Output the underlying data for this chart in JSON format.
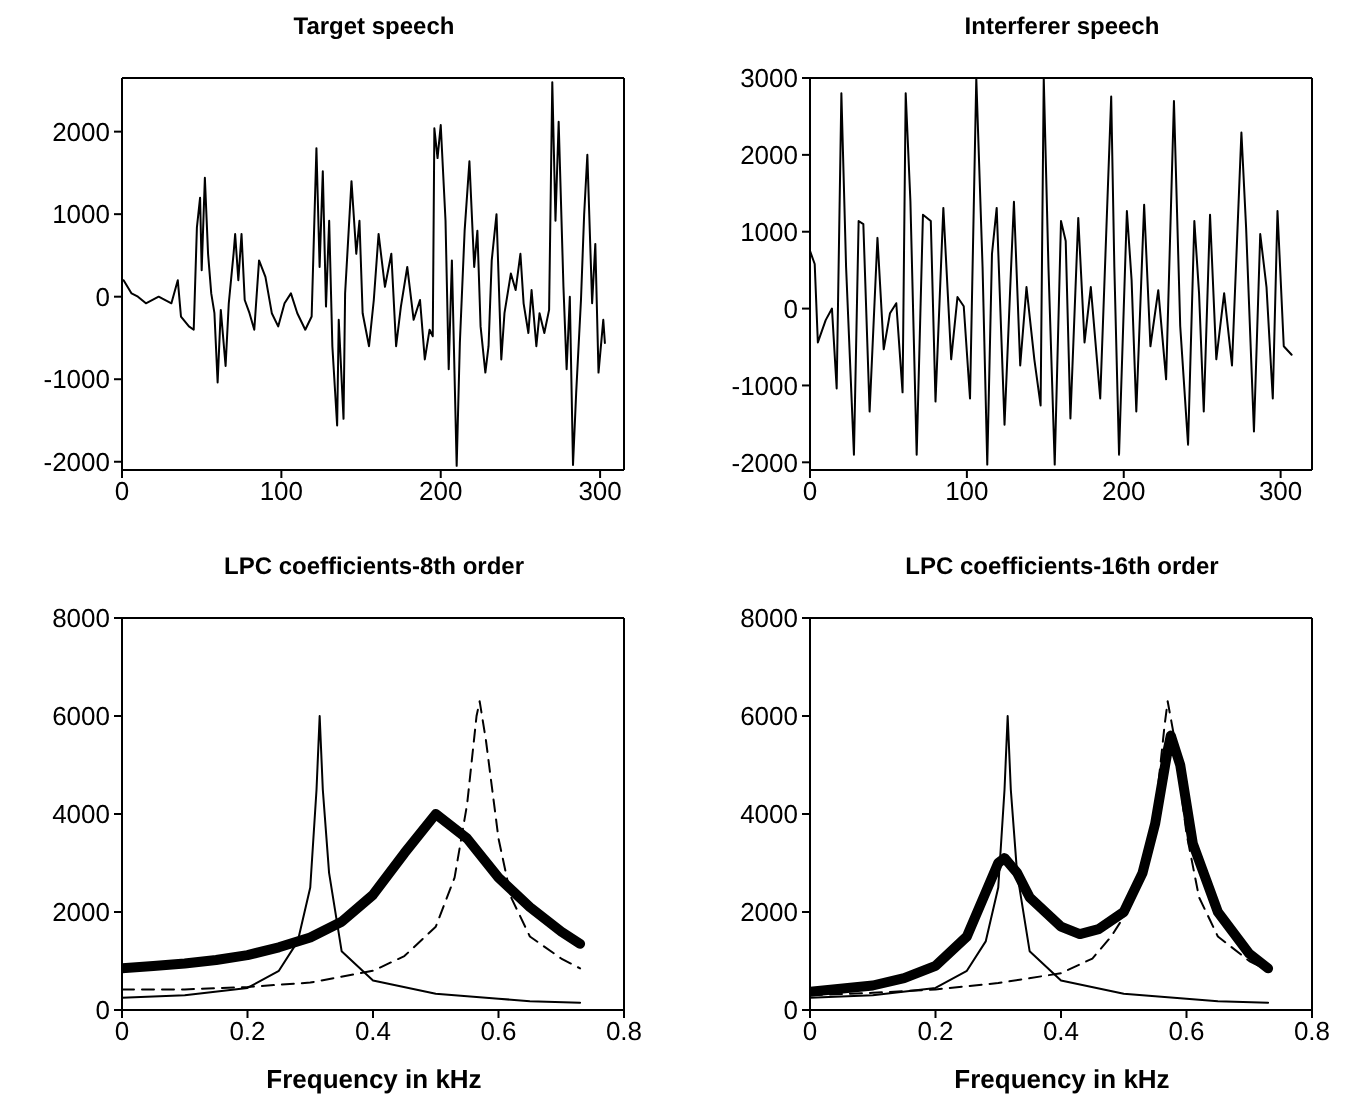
{
  "chart_data": [
    {
      "type": "line",
      "title": "Target speech",
      "xlim": [
        0,
        315
      ],
      "xticks": [
        0,
        100,
        200,
        300
      ],
      "ylim": [
        -2100,
        2650
      ],
      "yticks": [
        -2000,
        -1000,
        0,
        1000,
        2000
      ],
      "grid": false,
      "legend": false,
      "marker": "none",
      "series": [
        {
          "color": "#000000",
          "line_style": "solid",
          "x": [
            1,
            6,
            10,
            15,
            23,
            31,
            35,
            37,
            42,
            45,
            47,
            49,
            50,
            52,
            54,
            56,
            58,
            60,
            62,
            65,
            67,
            70,
            71,
            73,
            75,
            77,
            80,
            83,
            86,
            90,
            94,
            98,
            102,
            106,
            110,
            115,
            119,
            122,
            124,
            126,
            128,
            130,
            132,
            135,
            136,
            139,
            140,
            144,
            147,
            149,
            151,
            155,
            158,
            161,
            165,
            169,
            172,
            175,
            179,
            183,
            187,
            190,
            193,
            195,
            196,
            198,
            200,
            203,
            205,
            207,
            210,
            212,
            215,
            218,
            221,
            223,
            225,
            228,
            230,
            232,
            235,
            238,
            240,
            244,
            247,
            250,
            252,
            255,
            257,
            260,
            262,
            265,
            268,
            270,
            272,
            274,
            277,
            279,
            281,
            283,
            285,
            288,
            290,
            292,
            295,
            297,
            299,
            302,
            303
          ],
          "values": [
            200,
            40,
            0,
            -80,
            0,
            -80,
            200,
            -240,
            -360,
            -400,
            840,
            1200,
            320,
            1440,
            520,
            40,
            -200,
            -1040,
            -160,
            -840,
            -80,
            520,
            760,
            200,
            760,
            -40,
            -200,
            -400,
            440,
            240,
            -200,
            -360,
            -80,
            40,
            -200,
            -400,
            -240,
            1800,
            360,
            1520,
            -120,
            920,
            -600,
            -1560,
            -280,
            -1480,
            40,
            1400,
            520,
            920,
            -200,
            -600,
            -40,
            760,
            120,
            520,
            -600,
            -120,
            360,
            -280,
            -40,
            -760,
            -400,
            -480,
            2040,
            1680,
            2080,
            920,
            -880,
            440,
            -2050,
            -560,
            800,
            1640,
            360,
            800,
            -360,
            -920,
            -600,
            440,
            1000,
            -760,
            -200,
            280,
            80,
            520,
            -80,
            -440,
            80,
            -600,
            -200,
            -440,
            -160,
            2600,
            920,
            2120,
            120,
            -880,
            0,
            -2040,
            -1160,
            -40,
            1000,
            1720,
            -80,
            640,
            -920,
            -280,
            -560
          ]
        }
      ]
    },
    {
      "type": "line",
      "title": "Interferer speech",
      "xlim": [
        0,
        320
      ],
      "xticks": [
        0,
        100,
        200,
        300
      ],
      "ylim": [
        -2100,
        3000
      ],
      "yticks": [
        -2000,
        -1000,
        0,
        1000,
        2000,
        3000
      ],
      "grid": false,
      "legend": false,
      "marker": "none",
      "series": [
        {
          "color": "#000000",
          "line_style": "solid",
          "x": [
            0,
            3,
            5,
            10,
            14,
            17,
            20,
            23,
            28,
            31,
            34,
            38,
            43,
            47,
            51,
            55,
            59,
            61,
            64,
            68,
            72,
            77,
            80,
            85,
            90,
            94,
            98,
            102,
            106,
            110,
            113,
            116,
            119,
            124,
            128,
            130,
            134,
            138,
            143,
            147,
            149,
            152,
            156,
            160,
            163,
            166,
            171,
            175,
            179,
            185,
            192,
            194,
            197,
            202,
            205,
            208,
            213,
            217,
            222,
            227,
            232,
            236,
            241,
            245,
            248,
            251,
            255,
            259,
            264,
            269,
            275,
            278,
            283,
            287,
            291,
            295,
            298,
            302,
            307
          ],
          "values": [
            750,
            580,
            -440,
            -150,
            0,
            -1040,
            2800,
            540,
            -1900,
            1140,
            1100,
            -1340,
            920,
            -530,
            -60,
            70,
            -1090,
            2800,
            1400,
            -1900,
            1220,
            1140,
            -1210,
            1310,
            -660,
            150,
            30,
            -1170,
            3000,
            540,
            -2030,
            710,
            1310,
            -1510,
            450,
            1390,
            -740,
            280,
            -660,
            -1260,
            3000,
            540,
            -2030,
            1140,
            880,
            -1430,
            1180,
            -440,
            280,
            -1170,
            2760,
            540,
            -1900,
            1270,
            370,
            -1340,
            1350,
            -490,
            240,
            -920,
            2700,
            -230,
            -1770,
            1140,
            200,
            -1340,
            1220,
            -660,
            200,
            -740,
            2290,
            1050,
            -1600,
            970,
            280,
            -1170,
            1270,
            -490,
            -600
          ]
        }
      ]
    },
    {
      "type": "line",
      "title": "LPC coefficients-8th order",
      "xlabel": "Frequency in kHz",
      "xlim": [
        0,
        0.8
      ],
      "xticks": [
        0,
        0.2,
        0.4,
        0.6,
        0.8
      ],
      "ylim": [
        0,
        8000
      ],
      "yticks": [
        0,
        2000,
        4000,
        6000,
        8000
      ],
      "grid": false,
      "legend": false,
      "marker": "none",
      "series": [
        {
          "color": "#000000",
          "line_style": "solid",
          "x": [
            0,
            0.1,
            0.2,
            0.25,
            0.28,
            0.3,
            0.31,
            0.315,
            0.32,
            0.33,
            0.35,
            0.4,
            0.5,
            0.6,
            0.65,
            0.73
          ],
          "values": [
            250,
            300,
            450,
            800,
            1400,
            2500,
            4500,
            6000,
            4500,
            2800,
            1200,
            600,
            330,
            230,
            180,
            150
          ]
        },
        {
          "color": "#000000",
          "line_style": "dashed",
          "x": [
            0,
            0.1,
            0.2,
            0.3,
            0.4,
            0.45,
            0.5,
            0.53,
            0.55,
            0.565,
            0.57,
            0.58,
            0.6,
            0.62,
            0.65,
            0.7,
            0.73
          ],
          "values": [
            420,
            420,
            470,
            560,
            800,
            1100,
            1700,
            2700,
            4200,
            6000,
            6300,
            5500,
            3500,
            2300,
            1500,
            1050,
            850
          ]
        },
        {
          "color": "#000000",
          "line_style": "solid",
          "x": [
            0,
            0.05,
            0.1,
            0.15,
            0.2,
            0.25,
            0.3,
            0.35,
            0.4,
            0.45,
            0.5,
            0.55,
            0.6,
            0.65,
            0.7,
            0.73
          ],
          "values": [
            850,
            900,
            950,
            1020,
            1120,
            1280,
            1480,
            1800,
            2350,
            3200,
            4000,
            3500,
            2700,
            2100,
            1600,
            1350
          ]
        }
      ]
    },
    {
      "type": "line",
      "title": "LPC coefficients-16th order",
      "xlabel": "Frequency in kHz",
      "xlim": [
        0,
        0.8
      ],
      "xticks": [
        0,
        0.2,
        0.4,
        0.6,
        0.8
      ],
      "ylim": [
        0,
        8000
      ],
      "yticks": [
        0,
        2000,
        4000,
        6000,
        8000
      ],
      "grid": false,
      "legend": false,
      "marker": "none",
      "series": [
        {
          "color": "#000000",
          "line_style": "solid",
          "x": [
            0,
            0.1,
            0.2,
            0.25,
            0.28,
            0.3,
            0.31,
            0.315,
            0.32,
            0.33,
            0.35,
            0.4,
            0.5,
            0.6,
            0.65,
            0.73
          ],
          "values": [
            250,
            300,
            450,
            800,
            1400,
            2500,
            4500,
            6000,
            4500,
            2800,
            1200,
            600,
            330,
            230,
            180,
            150
          ]
        },
        {
          "color": "#000000",
          "line_style": "dashed",
          "x": [
            0,
            0.1,
            0.2,
            0.3,
            0.4,
            0.45,
            0.48,
            0.5,
            0.53,
            0.55,
            0.565,
            0.57,
            0.58,
            0.6,
            0.62,
            0.65,
            0.7,
            0.73
          ],
          "values": [
            300,
            350,
            420,
            550,
            750,
            1050,
            1500,
            1900,
            2800,
            4000,
            5800,
            6300,
            5600,
            3600,
            2300,
            1500,
            1000,
            800
          ]
        },
        {
          "color": "#000000",
          "line_style": "solid",
          "x": [
            0,
            0.1,
            0.15,
            0.2,
            0.25,
            0.28,
            0.3,
            0.31,
            0.33,
            0.35,
            0.4,
            0.43,
            0.46,
            0.5,
            0.53,
            0.55,
            0.57,
            0.575,
            0.59,
            0.61,
            0.65,
            0.7,
            0.73
          ],
          "values": [
            370,
            500,
            650,
            900,
            1500,
            2400,
            3000,
            3100,
            2800,
            2300,
            1700,
            1550,
            1650,
            2000,
            2800,
            3800,
            5300,
            5600,
            5000,
            3400,
            2000,
            1150,
            850
          ]
        }
      ]
    }
  ]
}
